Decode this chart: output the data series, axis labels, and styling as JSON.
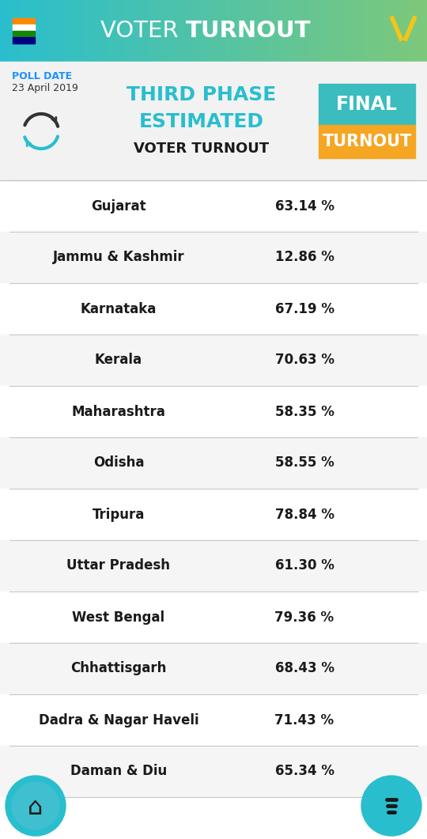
{
  "title_word1": "VOTER ",
  "title_word2": "TURNOUT",
  "poll_date_label": "POLL DATE",
  "poll_date": "23 April 2019",
  "phase_line1": "THIRD PHASE",
  "phase_line2": "ESTIMATED",
  "phase_line3": "VOTER TURNOUT",
  "final_line1": "FINAL",
  "final_line2": "TURNOUT",
  "header_bg_color": "#29BECE",
  "header_bg_color2": "#7DC87A",
  "sub_header_bg": "#F2F2F2",
  "divider_color": "#C8C8C8",
  "poll_date_color": "#1E90FF",
  "phase_color": "#29BECE",
  "final_bg1": "#3BBCBE",
  "final_bg2": "#F5A623",
  "final_text_color": "#FFFFFF",
  "rows": [
    {
      "state": "Gujarat",
      "pct": "63.14 %"
    },
    {
      "state": "Jammu & Kashmir",
      "pct": "12.86 %"
    },
    {
      "state": "Karnataka",
      "pct": "67.19 %"
    },
    {
      "state": "Kerala",
      "pct": "70.63 %"
    },
    {
      "state": "Maharashtra",
      "pct": "58.35 %"
    },
    {
      "state": "Odisha",
      "pct": "58.55 %"
    },
    {
      "state": "Tripura",
      "pct": "78.84 %"
    },
    {
      "state": "Uttar Pradesh",
      "pct": "61.30 %"
    },
    {
      "state": "West Bengal",
      "pct": "79.36 %"
    },
    {
      "state": "Chhattisgarh",
      "pct": "68.43 %"
    },
    {
      "state": "Dadra & Nagar Haveli",
      "pct": "71.43 %"
    },
    {
      "state": "Daman & Diu",
      "pct": "65.34 %"
    }
  ],
  "footer_circle_color": "#29BECE",
  "fig_width": 5.4,
  "fig_height": 10.61,
  "dpi": 100
}
